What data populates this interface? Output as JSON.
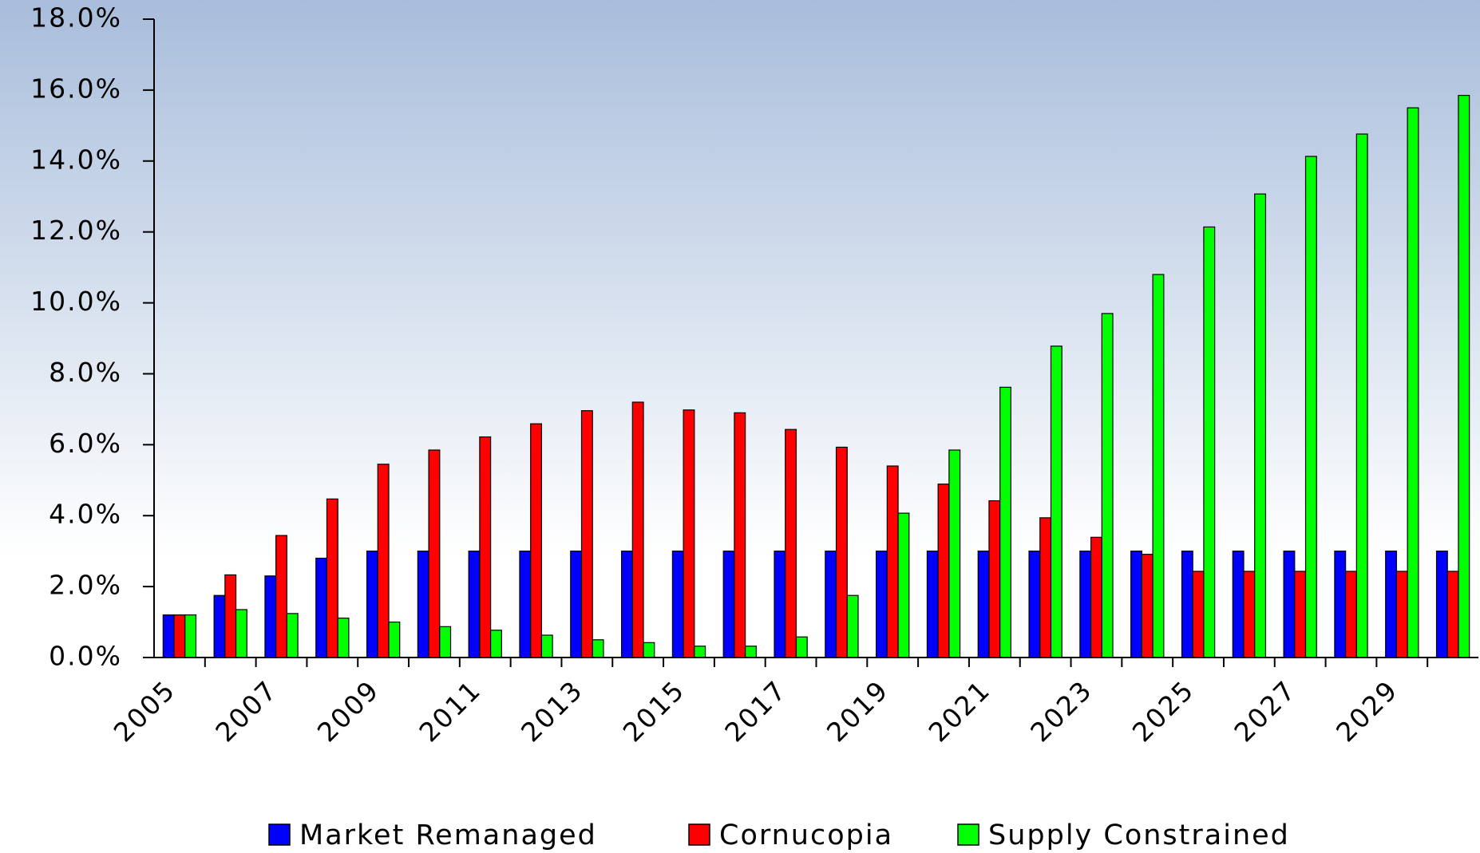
{
  "chart_data": {
    "type": "bar",
    "categories": [
      "2005",
      null,
      "2007",
      null,
      "2009",
      null,
      "2011",
      null,
      "2013",
      null,
      "2015",
      null,
      "2017",
      null,
      "2019",
      null,
      "2021",
      null,
      "2023",
      null,
      "2025",
      null,
      "2027",
      null,
      "2029",
      null
    ],
    "series": [
      {
        "name": "Market Remanaged",
        "color": "#0000ff",
        "values": [
          1.2,
          1.75,
          2.3,
          2.8,
          3.0,
          3.0,
          3.0,
          3.0,
          3.0,
          3.0,
          3.0,
          3.0,
          3.0,
          3.0,
          3.0,
          3.0,
          3.0,
          3.0,
          3.0,
          3.0,
          3.0,
          3.0,
          3.0,
          3.0,
          3.0,
          3.0
        ]
      },
      {
        "name": "Cornucopia",
        "color": "#ff0000",
        "values": [
          1.2,
          2.33,
          3.44,
          4.47,
          5.45,
          5.85,
          6.22,
          6.59,
          6.96,
          7.2,
          6.98,
          6.9,
          6.43,
          5.93,
          5.4,
          4.89,
          4.42,
          3.94,
          3.39,
          2.91,
          2.43,
          2.43,
          2.43,
          2.43,
          2.43,
          2.43
        ]
      },
      {
        "name": "Supply Constrained",
        "color": "#00ff00",
        "values": [
          1.2,
          1.35,
          1.24,
          1.11,
          1.0,
          0.87,
          0.77,
          0.63,
          0.5,
          0.42,
          0.32,
          0.32,
          0.58,
          1.75,
          4.07,
          5.85,
          7.62,
          8.78,
          9.7,
          10.8,
          12.14,
          13.07,
          14.13,
          14.76,
          15.5,
          15.85
        ]
      }
    ],
    "ylim": [
      0,
      18
    ],
    "yticks": [
      {
        "value": 0,
        "label": "0.0%"
      },
      {
        "value": 2,
        "label": "2.0%"
      },
      {
        "value": 4,
        "label": "4.0%"
      },
      {
        "value": 6,
        "label": "6.0%"
      },
      {
        "value": 8,
        "label": "8.0%"
      },
      {
        "value": 10,
        "label": "10.0%"
      },
      {
        "value": 12,
        "label": "12.0%"
      },
      {
        "value": 14,
        "label": "14.0%"
      },
      {
        "value": 16,
        "label": "16.0%"
      },
      {
        "value": 18,
        "label": "18.0%"
      }
    ],
    "legend": "bottom"
  }
}
